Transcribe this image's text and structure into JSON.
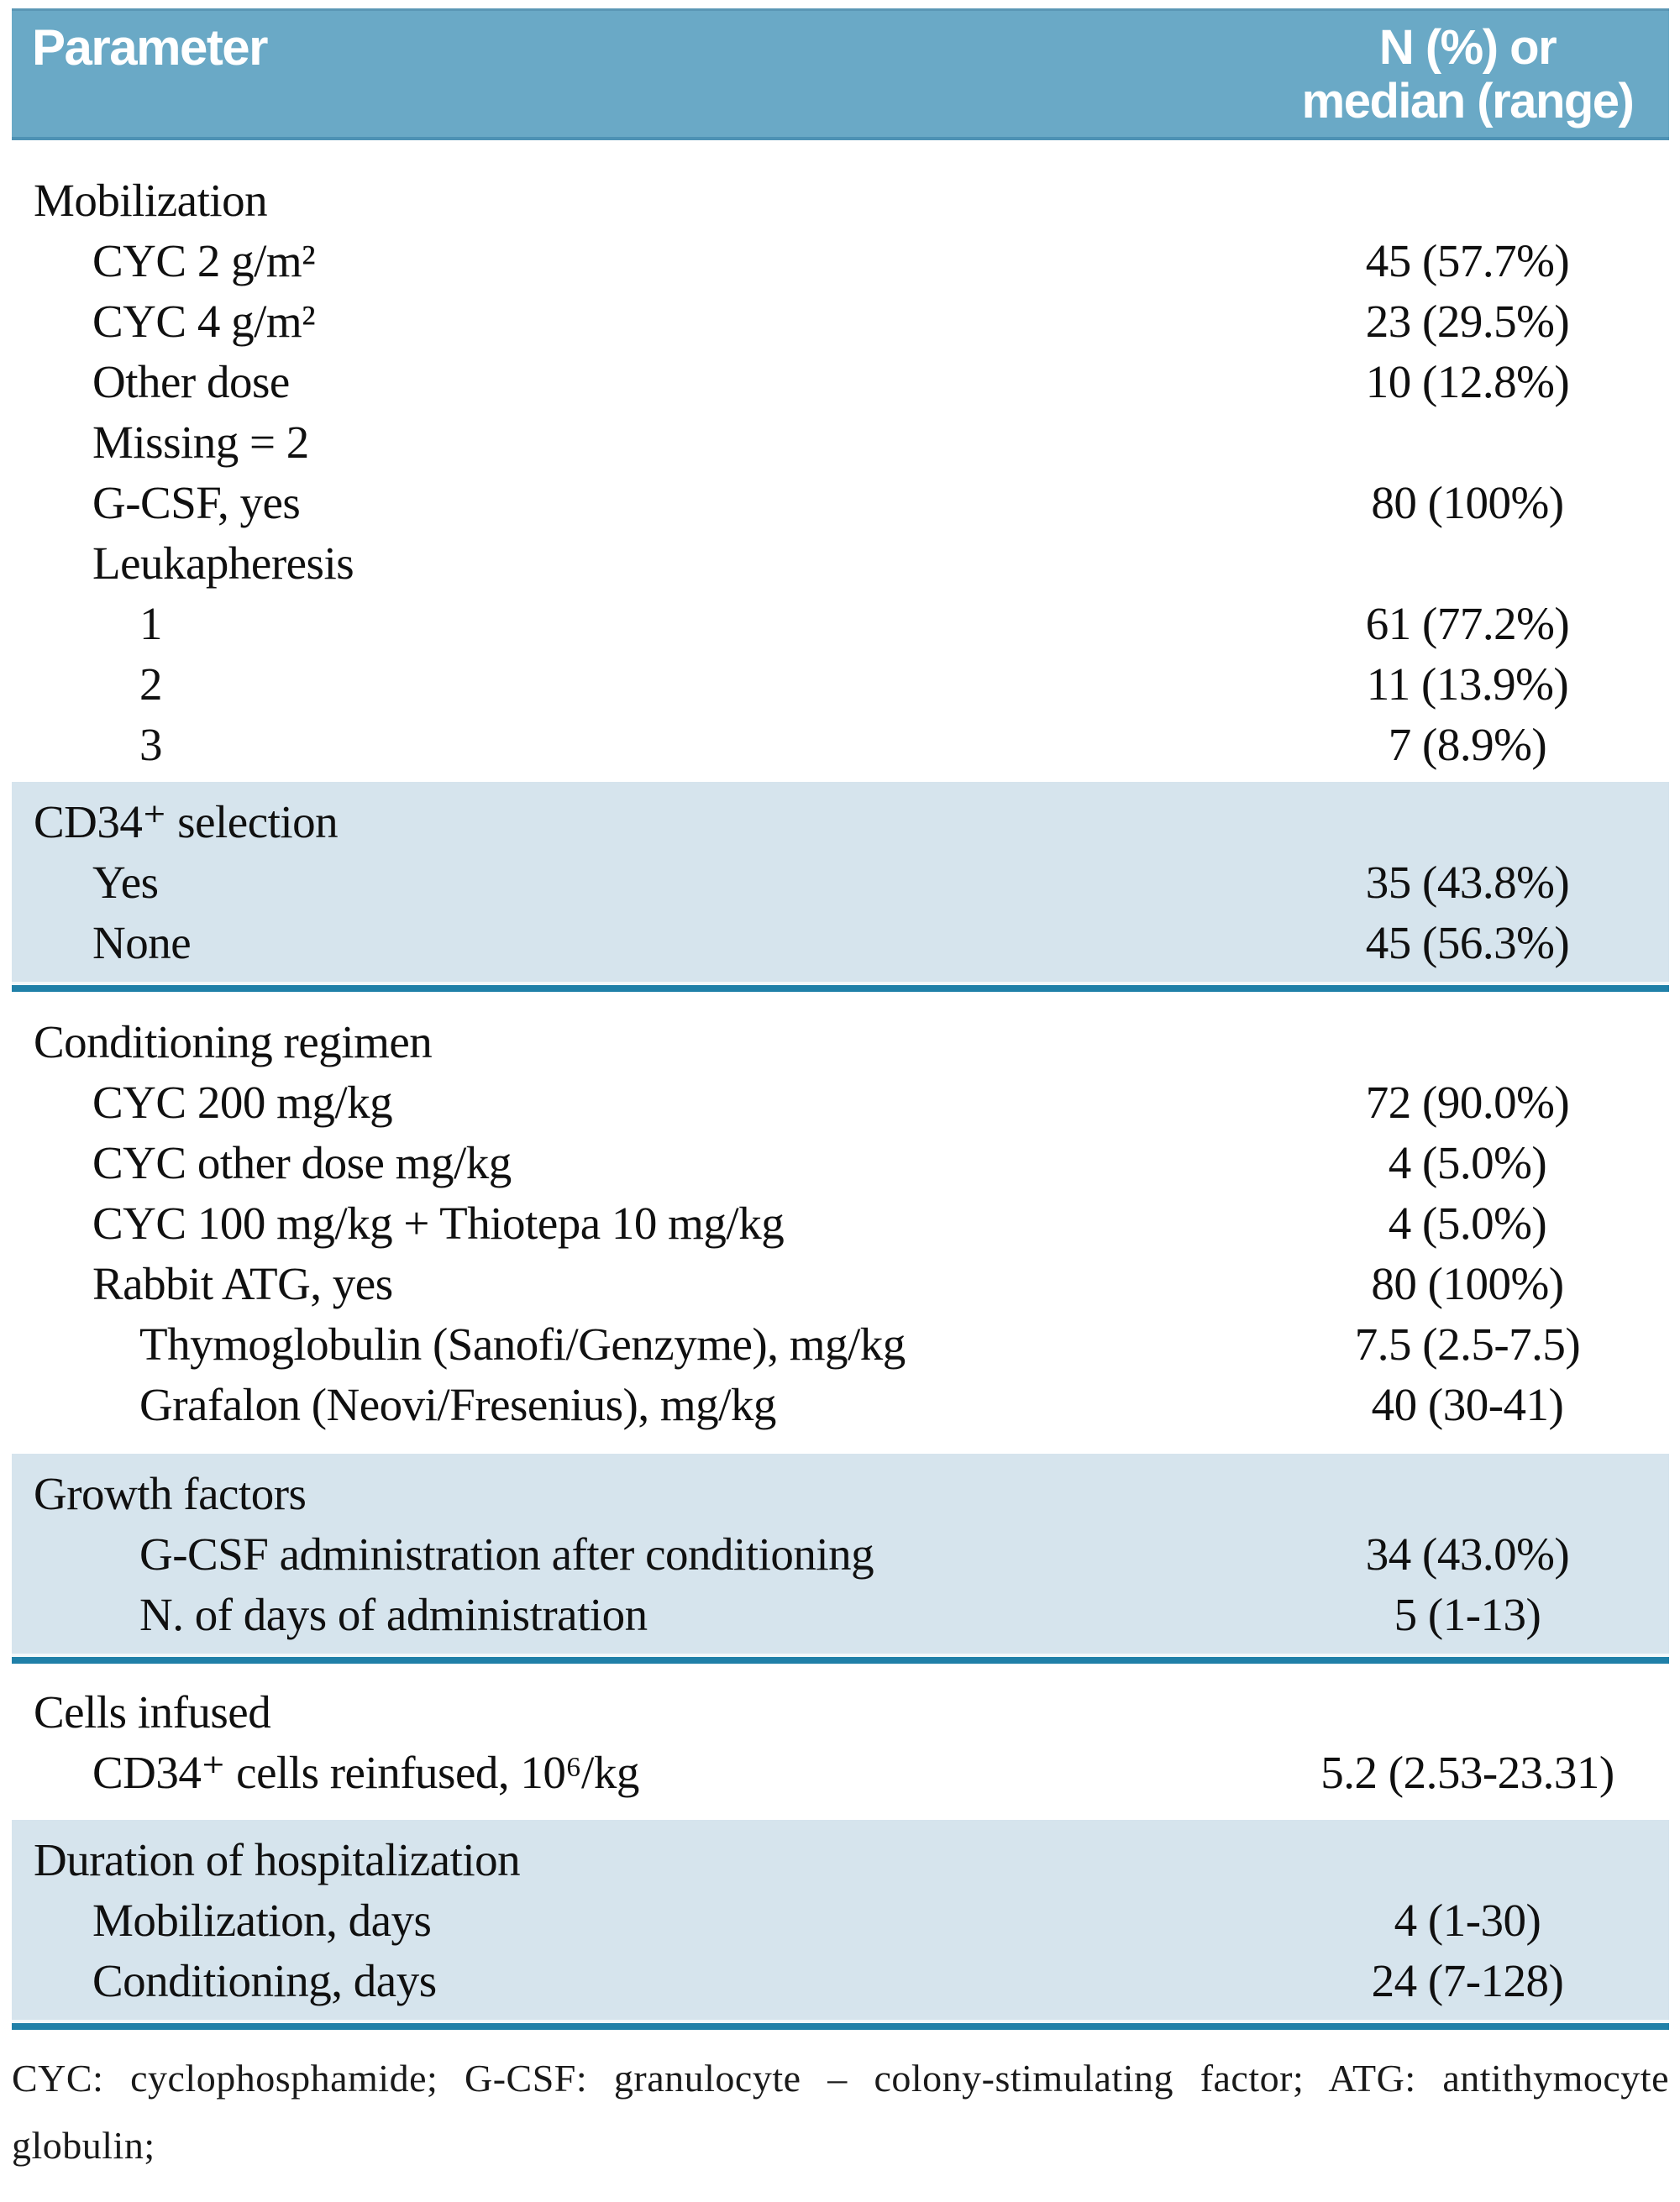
{
  "colors": {
    "header_bg": "#6aa9c6",
    "header_text": "#ffffff",
    "shaded_band_bg": "#d6e4ed",
    "rule_teal": "#2080a8",
    "body_text": "#101010"
  },
  "header": {
    "parameter_label": "Parameter",
    "value_label": "N (%) or median (range)",
    "value_label_line1": "N (%) or",
    "value_label_line2": "median (range)"
  },
  "sections": [
    {
      "name": "mobilization",
      "shaded": false,
      "rows": [
        {
          "label": "Mobilization",
          "value": "",
          "indent": 0
        },
        {
          "label": "CYC 2 g/m²",
          "value": "45 (57.7%)",
          "indent": 1
        },
        {
          "label": "CYC 4 g/m²",
          "value": "23 (29.5%)",
          "indent": 1
        },
        {
          "label": "Other dose",
          "value": "10 (12.8%)",
          "indent": 1
        },
        {
          "label": "Missing = 2",
          "value": "",
          "indent": 1
        },
        {
          "label": "G-CSF, yes",
          "value": "80 (100%)",
          "indent": 1
        },
        {
          "label": "Leukapheresis",
          "value": "",
          "indent": 1
        },
        {
          "label": "1",
          "value": "61 (77.2%)",
          "indent": 2
        },
        {
          "label": "2",
          "value": "11 (13.9%)",
          "indent": 2
        },
        {
          "label": "3",
          "value": "7 (8.9%)",
          "indent": 2
        }
      ]
    },
    {
      "name": "cd34-selection",
      "shaded": true,
      "rows": [
        {
          "label": "CD34⁺ selection",
          "value": "",
          "indent": 0
        },
        {
          "label": "Yes",
          "value": "35 (43.8%)",
          "indent": 1
        },
        {
          "label": "None",
          "value": "45 (56.3%)",
          "indent": 1
        }
      ]
    },
    {
      "name": "conditioning-regimen",
      "shaded": false,
      "rows": [
        {
          "label": "Conditioning regimen",
          "value": "",
          "indent": 0
        },
        {
          "label": "CYC 200 mg/kg",
          "value": "72 (90.0%)",
          "indent": 1
        },
        {
          "label": "CYC other dose mg/kg",
          "value": "4 (5.0%)",
          "indent": 1
        },
        {
          "label": "CYC 100 mg/kg + Thiotepa 10 mg/kg",
          "value": "4 (5.0%)",
          "indent": 1
        },
        {
          "label": "Rabbit ATG, yes",
          "value": "80 (100%)",
          "indent": 1
        },
        {
          "label": "Thymoglobulin (Sanofi/Genzyme), mg/kg",
          "value": "7.5 (2.5-7.5)",
          "indent": 2
        },
        {
          "label": "Grafalon (Neovi/Fresenius), mg/kg",
          "value": "40 (30-41)",
          "indent": 2
        }
      ]
    },
    {
      "name": "growth-factors",
      "shaded": true,
      "rows": [
        {
          "label": "Growth factors",
          "value": "",
          "indent": 0
        },
        {
          "label": "G-CSF administration after conditioning",
          "value": "34 (43.0%)",
          "indent": 2
        },
        {
          "label": "N. of days of administration",
          "value": "5 (1-13)",
          "indent": 2
        }
      ]
    },
    {
      "name": "cells-infused",
      "shaded": false,
      "rows": [
        {
          "label": "Cells infused",
          "value": "",
          "indent": 0
        },
        {
          "label": "CD34⁺ cells reinfused, 10⁶/kg",
          "value": "5.2 (2.53-23.31)",
          "indent": 1
        }
      ]
    },
    {
      "name": "duration-of-hospitalization",
      "shaded": true,
      "rows": [
        {
          "label": "Duration of hospitalization",
          "value": "",
          "indent": 0
        },
        {
          "label": "Mobilization, days",
          "value": "4 (1-30)",
          "indent": 1
        },
        {
          "label": "Conditioning, days",
          "value": "24 (7-128)",
          "indent": 1
        }
      ]
    }
  ],
  "footnote": {
    "full_text": "CYC: cyclophosphamide; G-CSF: granulocyte – colony-stimulating factor; ATG: antithymocyte globulin;",
    "line1": "CYC: cyclophosphamide; G-CSF: granulocyte – colony-stimulating factor; ATG: antithymocyte",
    "line2": "globulin;"
  }
}
